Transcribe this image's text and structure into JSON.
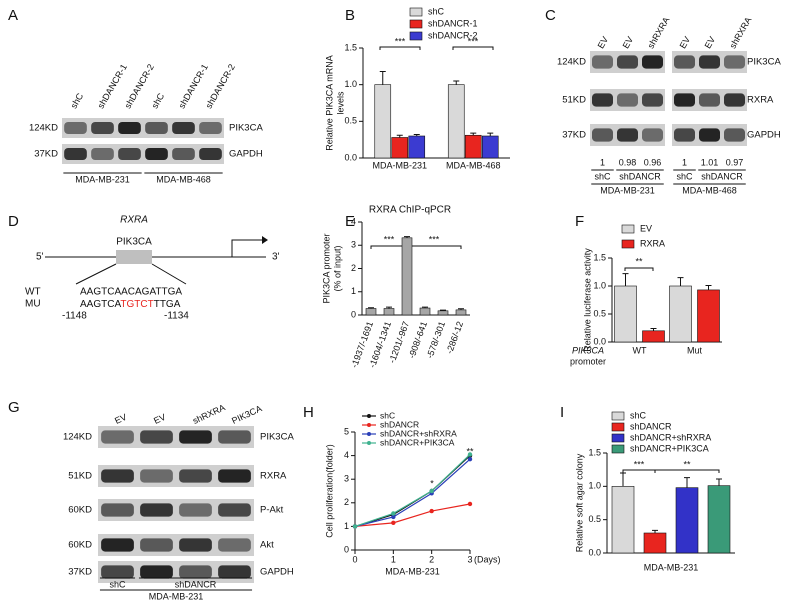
{
  "panel_letters": [
    "A",
    "B",
    "C",
    "D",
    "E",
    "F",
    "G",
    "H",
    "I"
  ],
  "blot_A": {
    "lanes": [
      "shC",
      "shDANCR-1",
      "shDANCR-2",
      "shC",
      "shDANCR-1",
      "shDANCR-2"
    ],
    "rows": [
      {
        "mw": "124KD",
        "protein": "PIK3CA"
      },
      {
        "mw": "37KD",
        "protein": "GAPDH"
      }
    ],
    "groups": [
      "MDA-MB-231",
      "MDA-MB-468"
    ]
  },
  "blot_C": {
    "lanes": [
      "EV",
      "EV",
      "shRXRA",
      "EV",
      "EV",
      "shRXRA"
    ],
    "rows": [
      {
        "mw": "124KD",
        "protein": "PIK3CA"
      },
      {
        "mw": "51KD",
        "protein": "RXRA"
      },
      {
        "mw": "37KD",
        "protein": "GAPDH"
      }
    ],
    "quant": [
      1,
      0.98,
      0.96,
      1,
      1.01,
      0.97
    ],
    "subgroups": [
      "shC",
      "shDANCR",
      "shC",
      "shDANCR"
    ],
    "groups": [
      "MDA-MB-231",
      "MDA-MB-468"
    ]
  },
  "diagram_D": {
    "gene": "RXRA",
    "box": "PIK3CA",
    "five_prime": "5'",
    "three_prime": "3'",
    "wt_label": "WT",
    "mu_label": "MU",
    "wt_sequence": "AAGTCAACAGATTGA",
    "mu_sequence": [
      "AAGTCA",
      "TGTCT",
      "TTGA"
    ],
    "start": "-1148",
    "end": "-1134"
  },
  "blot_G": {
    "lanes": [
      "EV",
      "EV",
      "shRXRA",
      "PIK3CA"
    ],
    "rows": [
      {
        "mw": "124KD",
        "protein": "PIK3CA"
      },
      {
        "mw": "51KD",
        "protein": "RXRA"
      },
      {
        "mw": "60KD",
        "protein": "P-Akt"
      },
      {
        "mw": "60KD",
        "protein": "Akt"
      },
      {
        "mw": "37KD",
        "protein": "GAPDH"
      }
    ],
    "subgroups": [
      "shC",
      "shDANCR"
    ],
    "groups": [
      "MDA-MB-231"
    ]
  },
  "chart_data": [
    {
      "type": "bar",
      "ylabel_lines": [
        "Relative PIK3CA mRNA",
        "levels"
      ],
      "categories": [
        "MDA-MB-231",
        "MDA-MB-468"
      ],
      "series": [
        {
          "name": "shC",
          "color": "#d9d9d9",
          "values": [
            1.0,
            1.0
          ],
          "errors": [
            0.18,
            0.05
          ]
        },
        {
          "name": "shDANCR-1",
          "color": "#e8251f",
          "values": [
            0.28,
            0.31
          ],
          "errors": [
            0.03,
            0.03
          ]
        },
        {
          "name": "shDANCR-2",
          "color": "#3b3bd1",
          "values": [
            0.3,
            0.3
          ],
          "errors": [
            0.02,
            0.04
          ]
        }
      ],
      "ylim": [
        0,
        1.5
      ],
      "yticks": [
        {
          "value": 0,
          "label": "0.0"
        },
        {
          "value": 0.5,
          "label": "0.5"
        },
        {
          "value": 1,
          "label": "1.0"
        },
        {
          "value": 1.5,
          "label": "1.5"
        }
      ],
      "annotations": [
        "***",
        "***"
      ]
    },
    {
      "type": "bar",
      "title": "RXRA ChIP-qPCR",
      "ylabel_lines": [
        "PIK3CA promoter",
        "(% of input)"
      ],
      "categories": [
        "-1937/-1691",
        "-1604/-1341",
        "-1201/-967",
        "-908/-641",
        "-578/-301",
        "-286/-12"
      ],
      "values": [
        0.28,
        0.28,
        3.32,
        0.3,
        0.18,
        0.22
      ],
      "errors": [
        0.03,
        0.06,
        0.05,
        0.04,
        0.03,
        0.05
      ],
      "color": "#a6a6a6",
      "ylim": [
        0,
        4
      ],
      "yticks": [
        0,
        1,
        2,
        3,
        4
      ],
      "annotations": [
        "***",
        "***"
      ]
    },
    {
      "type": "bar",
      "ylabel_lines": [
        "Relative luciferase activity"
      ],
      "x_label_lines": [
        "PIK3CA",
        "promoter"
      ],
      "categories": [
        "WT",
        "Mut"
      ],
      "series": [
        {
          "name": "EV",
          "color": "#d9d9d9",
          "values": [
            1.0,
            1.0
          ],
          "errors": [
            0.22,
            0.15
          ]
        },
        {
          "name": "RXRA",
          "color": "#e8251f",
          "values": [
            0.2,
            0.93
          ],
          "errors": [
            0.04,
            0.08
          ]
        }
      ],
      "ylim": [
        0,
        1.5
      ],
      "yticks": [
        {
          "value": 0,
          "label": "0.0"
        },
        {
          "value": 0.5,
          "label": "0.5"
        },
        {
          "value": 1,
          "label": "1.0"
        },
        {
          "value": 1.5,
          "label": "1.5"
        }
      ],
      "annotations": [
        "**"
      ]
    },
    {
      "type": "line",
      "ylabel_lines": [
        "Cell proliferation(folder)"
      ],
      "xlabel": "MDA-MB-231",
      "xunit": "(Days)",
      "x": [
        0,
        1,
        2,
        3
      ],
      "series": [
        {
          "name": "shC",
          "color": "#111111",
          "values": [
            1,
            1.5,
            2.5,
            4.0
          ]
        },
        {
          "name": "shDANCR",
          "color": "#e8251f",
          "values": [
            1,
            1.15,
            1.65,
            1.95
          ]
        },
        {
          "name": "shDANCR+shRXRA",
          "color": "#2a3fb8",
          "values": [
            1,
            1.4,
            2.4,
            3.85
          ]
        },
        {
          "name": "shDANCR+PIK3CA",
          "color": "#3fb28f",
          "values": [
            1,
            1.55,
            2.5,
            4.05
          ]
        }
      ],
      "xlim": [
        0,
        3
      ],
      "xticks": [
        0,
        1,
        2,
        3
      ],
      "ylim": [
        0,
        5
      ],
      "yticks": [
        0,
        1,
        2,
        3,
        4,
        5
      ],
      "annotations": [
        "*",
        "**"
      ]
    },
    {
      "type": "bar",
      "ylabel_lines": [
        "Relative soft agar colony"
      ],
      "xlabel": "MDA-MB-231",
      "series": [
        {
          "name": "shC",
          "color": "#d9d9d9",
          "values": [
            1.0
          ],
          "errors": [
            0.2
          ]
        },
        {
          "name": "shDANCR",
          "color": "#e8251f",
          "values": [
            0.3
          ],
          "errors": [
            0.04
          ]
        },
        {
          "name": "shDANCR+shRXRA",
          "color": "#3232c8",
          "values": [
            0.98
          ],
          "errors": [
            0.15
          ]
        },
        {
          "name": "shDANCR+PIK3CA",
          "color": "#3a9a78",
          "values": [
            1.01
          ],
          "errors": [
            0.1
          ]
        }
      ],
      "ylim": [
        0,
        1.5
      ],
      "yticks": [
        {
          "value": 0,
          "label": "0.0"
        },
        {
          "value": 0.5,
          "label": "0.5"
        },
        {
          "value": 1,
          "label": "1.0"
        },
        {
          "value": 1.5,
          "label": "1.5"
        }
      ],
      "annotations": [
        "***",
        "**"
      ]
    }
  ]
}
